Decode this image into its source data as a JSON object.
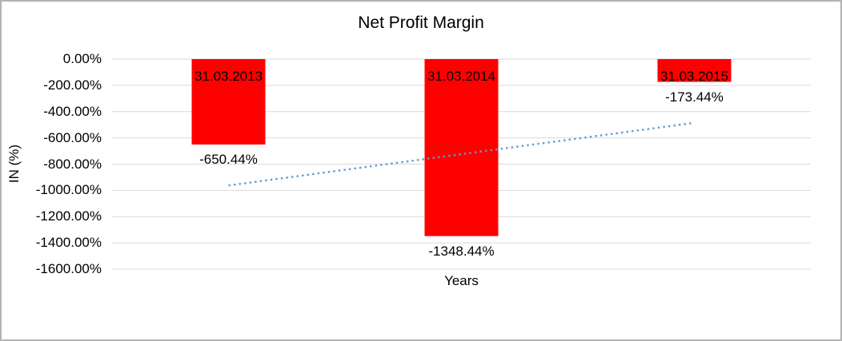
{
  "chart_data": {
    "type": "bar",
    "title": "Net Profit Margin",
    "xlabel": "Years",
    "ylabel": "IN (%)",
    "categories": [
      "31.03.2013",
      "31.03.2014",
      "31.03.2015"
    ],
    "values": [
      -650.44,
      -1348.44,
      -173.44
    ],
    "data_labels": [
      "-650.44%",
      "-1348.44%",
      "-173.44%"
    ],
    "y_ticks": [
      0,
      -200,
      -400,
      -600,
      -800,
      -1000,
      -1200,
      -1400,
      -1600
    ],
    "y_tick_labels": [
      "0.00%",
      "-200.00%",
      "-400.00%",
      "-600.00%",
      "-800.00%",
      "-1000.00%",
      "-1200.00%",
      "-1400.00%",
      "-1600.00%"
    ],
    "ylim": [
      0,
      -1600
    ],
    "grid": true,
    "legend": false,
    "bar_color": "#FF0000",
    "gridline_color": "#D9D9D9",
    "trendline": {
      "style": "dotted",
      "color": "#5B9BD5",
      "start_value": -962.6,
      "end_value": -485.6
    }
  }
}
